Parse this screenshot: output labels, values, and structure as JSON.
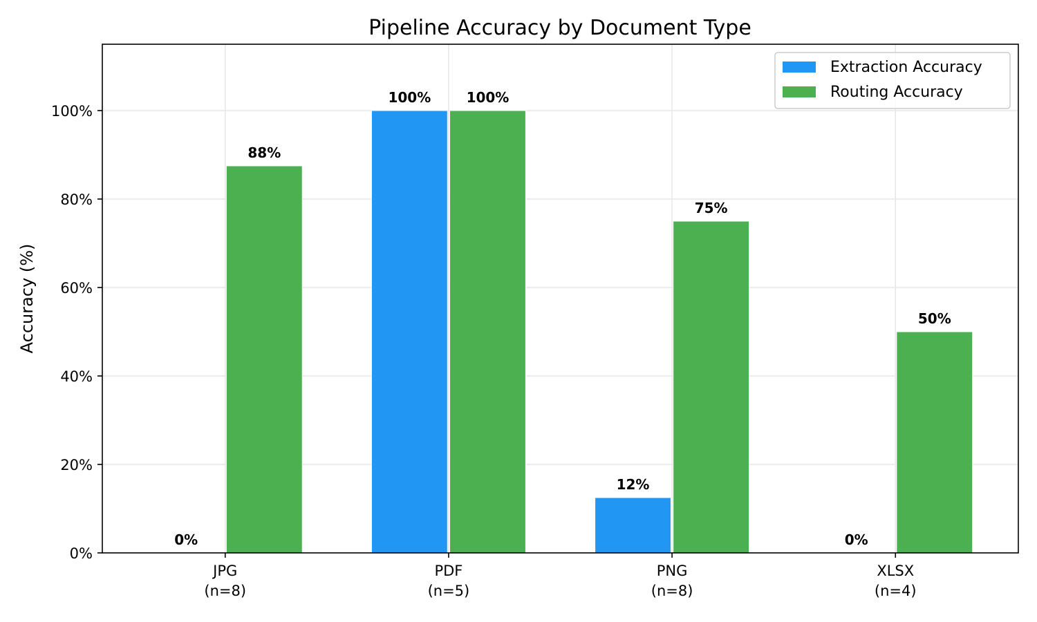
{
  "chart_data": {
    "type": "bar",
    "title": "Pipeline Accuracy by Document Type",
    "xlabel": "",
    "ylabel": "Accuracy (%)",
    "categories": [
      {
        "name": "JPG",
        "sub": "(n=8)"
      },
      {
        "name": "PDF",
        "sub": "(n=5)"
      },
      {
        "name": "PNG",
        "sub": "(n=8)"
      },
      {
        "name": "XLSX",
        "sub": "(n=4)"
      }
    ],
    "series": [
      {
        "name": "Extraction Accuracy",
        "color": "#2196f3",
        "values": [
          0,
          100,
          12.5,
          0
        ],
        "labels": [
          "0%",
          "100%",
          "12%",
          "0%"
        ]
      },
      {
        "name": "Routing Accuracy",
        "color": "#4caf50",
        "values": [
          87.5,
          100,
          75,
          50
        ],
        "labels": [
          "88%",
          "100%",
          "75%",
          "50%"
        ]
      }
    ],
    "ylim": [
      0,
      115
    ],
    "yticks": [
      0,
      20,
      40,
      60,
      80,
      100
    ],
    "ytick_labels": [
      "0%",
      "20%",
      "40%",
      "60%",
      "80%",
      "100%"
    ],
    "grid": true,
    "legend_position": "top-right"
  }
}
